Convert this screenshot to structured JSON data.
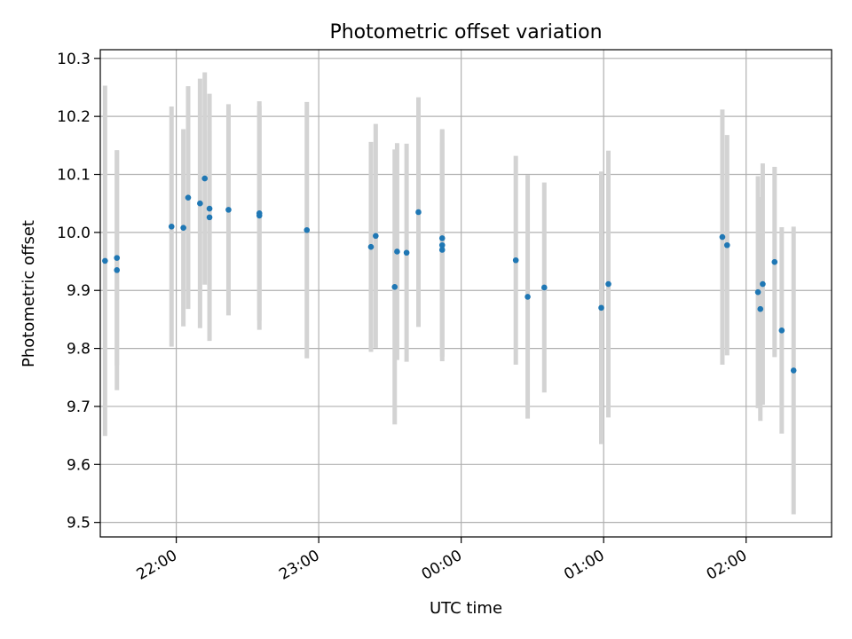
{
  "chart_data": {
    "type": "scatter",
    "title": "Photometric offset variation",
    "xlabel": "UTC time",
    "ylabel": "Photometric offset",
    "x_axis": {
      "kind": "time",
      "xlim": [
        "21:28",
        "26:36"
      ],
      "ticks": [
        {
          "value": "22:00",
          "label": "22:00"
        },
        {
          "value": "23:00",
          "label": "23:00"
        },
        {
          "value": "24:00",
          "label": "00:00"
        },
        {
          "value": "25:00",
          "label": "01:00"
        },
        {
          "value": "26:00",
          "label": "02:00"
        }
      ],
      "tick_label_rotation": "30deg"
    },
    "y_axis": {
      "ylim": [
        9.475,
        10.315
      ],
      "ticks": [
        {
          "value": 9.5,
          "label": "9.5"
        },
        {
          "value": 9.6,
          "label": "9.6"
        },
        {
          "value": 9.7,
          "label": "9.7"
        },
        {
          "value": 9.8,
          "label": "9.8"
        },
        {
          "value": 9.9,
          "label": "9.9"
        },
        {
          "value": 10.0,
          "label": "10.0"
        },
        {
          "value": 10.1,
          "label": "10.1"
        },
        {
          "value": 10.2,
          "label": "10.2"
        },
        {
          "value": 10.3,
          "label": "10.3"
        }
      ]
    },
    "grid": true,
    "marker_color": "#1f77b4",
    "errorbar_color": "#d3d3d3",
    "points": [
      {
        "x": "21:30",
        "y": 9.951,
        "err": 0.302
      },
      {
        "x": "21:35",
        "y": 9.956,
        "err": 0.185
      },
      {
        "x": "21:35",
        "y": 9.935,
        "err": 0.207
      },
      {
        "x": "21:58",
        "y": 10.01,
        "err": 0.207
      },
      {
        "x": "22:03",
        "y": 10.008,
        "err": 0.17
      },
      {
        "x": "22:05",
        "y": 10.06,
        "err": 0.192
      },
      {
        "x": "22:10",
        "y": 10.05,
        "err": 0.215
      },
      {
        "x": "22:12",
        "y": 10.093,
        "err": 0.183
      },
      {
        "x": "22:14",
        "y": 10.041,
        "err": 0.134
      },
      {
        "x": "22:14",
        "y": 10.026,
        "err": 0.213
      },
      {
        "x": "22:22",
        "y": 10.039,
        "err": 0.182
      },
      {
        "x": "22:35",
        "y": 10.029,
        "err": 0.197
      },
      {
        "x": "22:35",
        "y": 10.033,
        "err": 0.185
      },
      {
        "x": "22:55",
        "y": 10.004,
        "err": 0.221
      },
      {
        "x": "23:22",
        "y": 9.975,
        "err": 0.181
      },
      {
        "x": "23:24",
        "y": 9.994,
        "err": 0.193
      },
      {
        "x": "23:32",
        "y": 9.906,
        "err": 0.237
      },
      {
        "x": "23:33",
        "y": 9.967,
        "err": 0.187
      },
      {
        "x": "23:37",
        "y": 9.965,
        "err": 0.188
      },
      {
        "x": "23:42",
        "y": 10.035,
        "err": 0.198
      },
      {
        "x": "23:52",
        "y": 9.99,
        "err": 0.187
      },
      {
        "x": "23:52",
        "y": 9.978,
        "err": 0.2
      },
      {
        "x": "23:52",
        "y": 9.97,
        "err": 0.185
      },
      {
        "x": "24:23",
        "y": 9.952,
        "err": 0.18
      },
      {
        "x": "24:28",
        "y": 9.889,
        "err": 0.21
      },
      {
        "x": "24:35",
        "y": 9.905,
        "err": 0.181
      },
      {
        "x": "24:59",
        "y": 9.87,
        "err": 0.235
      },
      {
        "x": "25:02",
        "y": 9.911,
        "err": 0.23
      },
      {
        "x": "25:50",
        "y": 9.992,
        "err": 0.22
      },
      {
        "x": "25:52",
        "y": 9.978,
        "err": 0.19
      },
      {
        "x": "26:05",
        "y": 9.897,
        "err": 0.2
      },
      {
        "x": "26:06",
        "y": 9.868,
        "err": 0.193
      },
      {
        "x": "26:07",
        "y": 9.911,
        "err": 0.208
      },
      {
        "x": "26:12",
        "y": 9.949,
        "err": 0.164
      },
      {
        "x": "26:15",
        "y": 9.831,
        "err": 0.178
      },
      {
        "x": "26:20",
        "y": 9.762,
        "err": 0.248
      }
    ]
  }
}
